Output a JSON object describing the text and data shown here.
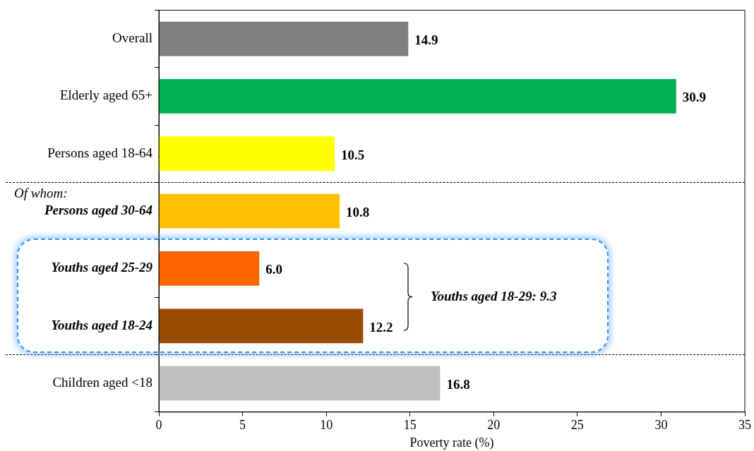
{
  "chart_data": {
    "type": "bar",
    "orientation": "horizontal",
    "xlabel": "Poverty rate (%)",
    "categories": [
      "Overall",
      "Elderly aged 65+",
      "Persons aged 18-64",
      "Persons aged 30-64",
      "Youths aged 25-29",
      "Youths aged 18-24",
      "Children aged <18"
    ],
    "values": [
      14.9,
      30.9,
      10.5,
      10.8,
      6.0,
      12.2,
      16.8
    ],
    "colors": [
      "#808080",
      "#00b050",
      "#ffff00",
      "#ffc000",
      "#ff6600",
      "#994c00",
      "#bfbfbf"
    ],
    "xlim": [
      0,
      35
    ],
    "xticks": [
      0,
      5,
      10,
      15,
      20,
      25,
      30,
      35
    ],
    "grid": false,
    "value_labels": [
      "14.9",
      "30.9",
      "10.5",
      "10.8",
      "6.0",
      "12.2",
      "16.8"
    ],
    "legend": false,
    "annotations": [
      "Of whom:",
      "Youths aged 18-29: 9.3"
    ]
  }
}
